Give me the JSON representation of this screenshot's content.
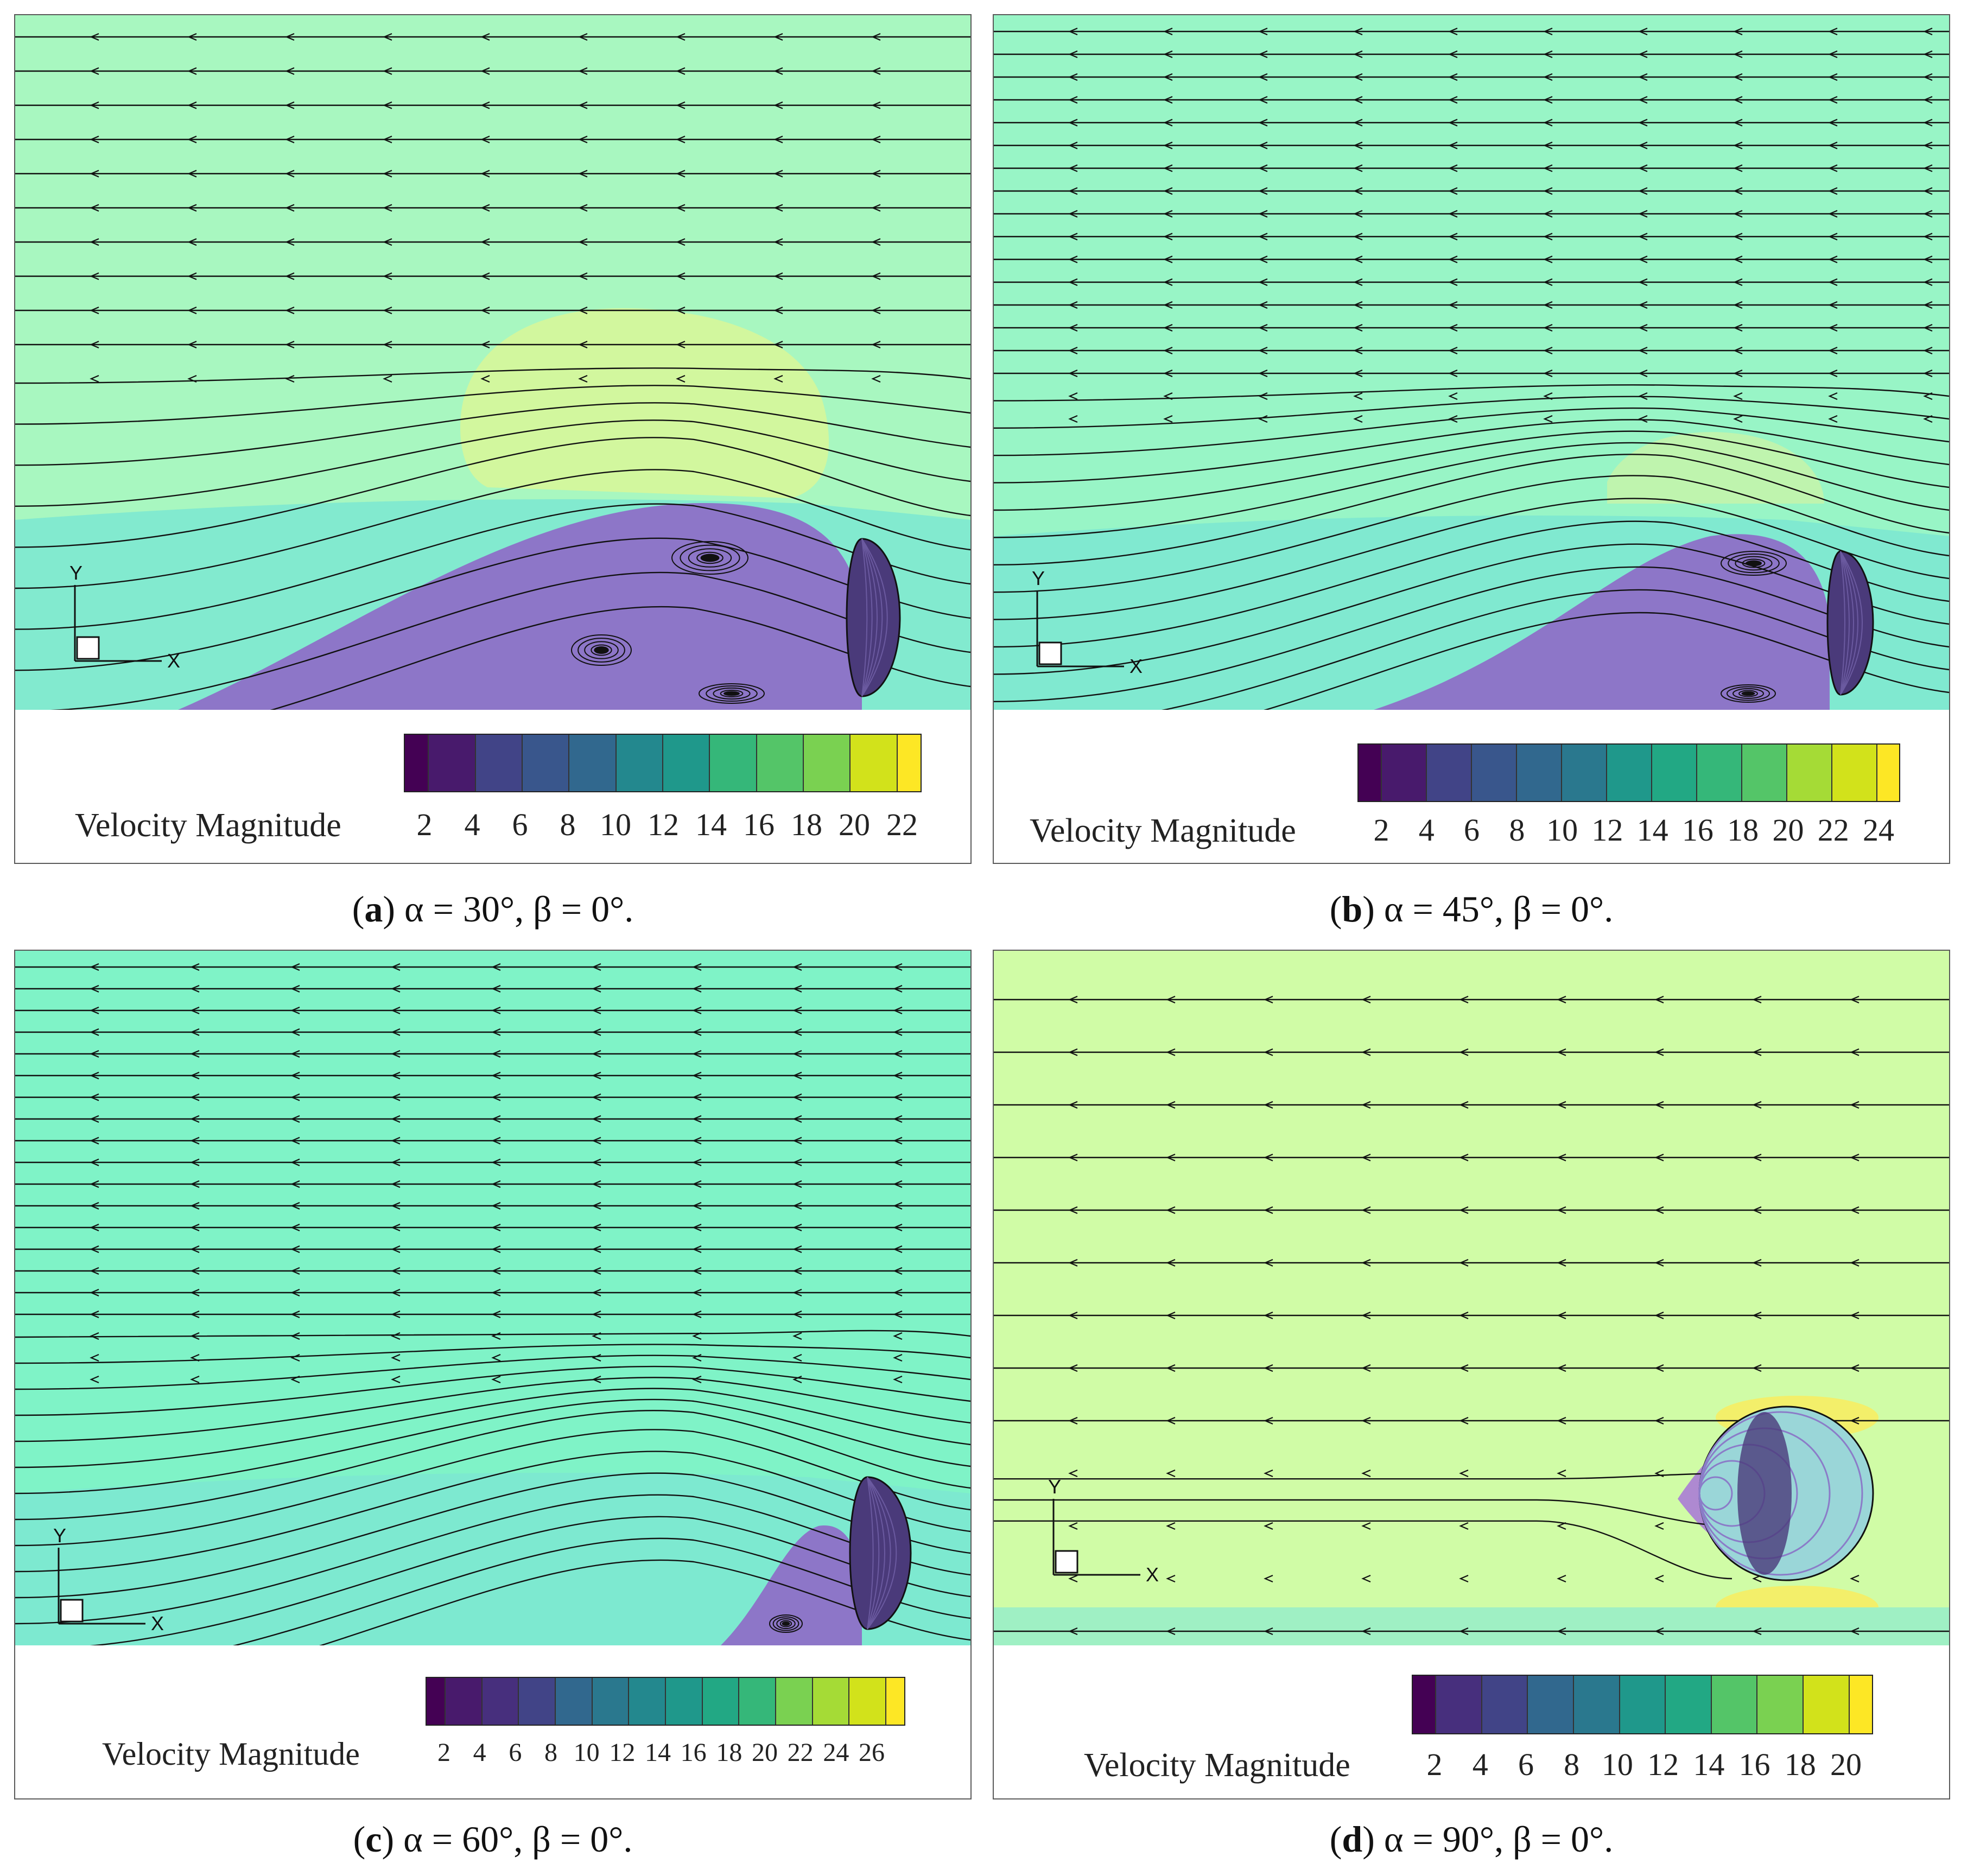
{
  "panels": [
    {
      "caption": {
        "letter": "a",
        "text": " α = 30°, β = 0°."
      },
      "colorbar": {
        "title": "Velocity Magnitude",
        "ticks": [
          "2",
          "4",
          "6",
          "8",
          "10",
          "12",
          "14",
          "16",
          "18",
          "20",
          "22"
        ]
      },
      "background": "#a8f7c0",
      "axis": {
        "x": "X",
        "y": "Y"
      }
    },
    {
      "caption": {
        "letter": "b",
        "text": " α = 45°, β = 0°."
      },
      "colorbar": {
        "title": "Velocity Magnitude",
        "ticks": [
          "2",
          "4",
          "6",
          "8",
          "10",
          "12",
          "14",
          "16",
          "18",
          "20",
          "22",
          "24"
        ]
      },
      "background": "#98f5c6",
      "axis": {
        "x": "X",
        "y": "Y"
      }
    },
    {
      "caption": {
        "letter": "c",
        "text": " α = 60°, β = 0°."
      },
      "colorbar": {
        "title": "Velocity Magnitude",
        "ticks": [
          "2",
          "4",
          "6",
          "8",
          "10",
          "12",
          "14",
          "16",
          "18",
          "20",
          "22",
          "24",
          "26"
        ]
      },
      "background": "#7ff3c7",
      "axis": {
        "x": "X",
        "y": "Y"
      }
    },
    {
      "caption": {
        "letter": "d",
        "text": " α = 90°, β = 0°."
      },
      "colorbar": {
        "title": "Velocity Magnitude",
        "ticks": [
          "2",
          "4",
          "6",
          "8",
          "10",
          "12",
          "14",
          "16",
          "18",
          "20"
        ]
      },
      "background": "#d0fca6",
      "axis": {
        "x": "X",
        "y": "Y"
      }
    }
  ],
  "colors": {
    "viridis": [
      "#440154",
      "#481a6c",
      "#472f7d",
      "#414487",
      "#39568c",
      "#31688e",
      "#2a788e",
      "#23888e",
      "#1f988b",
      "#22a884",
      "#35b779",
      "#54c568",
      "#7ad151",
      "#a5db36",
      "#d2e21b",
      "#fde725"
    ],
    "wake": "#8f62c7",
    "body": "#4a3a7a"
  }
}
